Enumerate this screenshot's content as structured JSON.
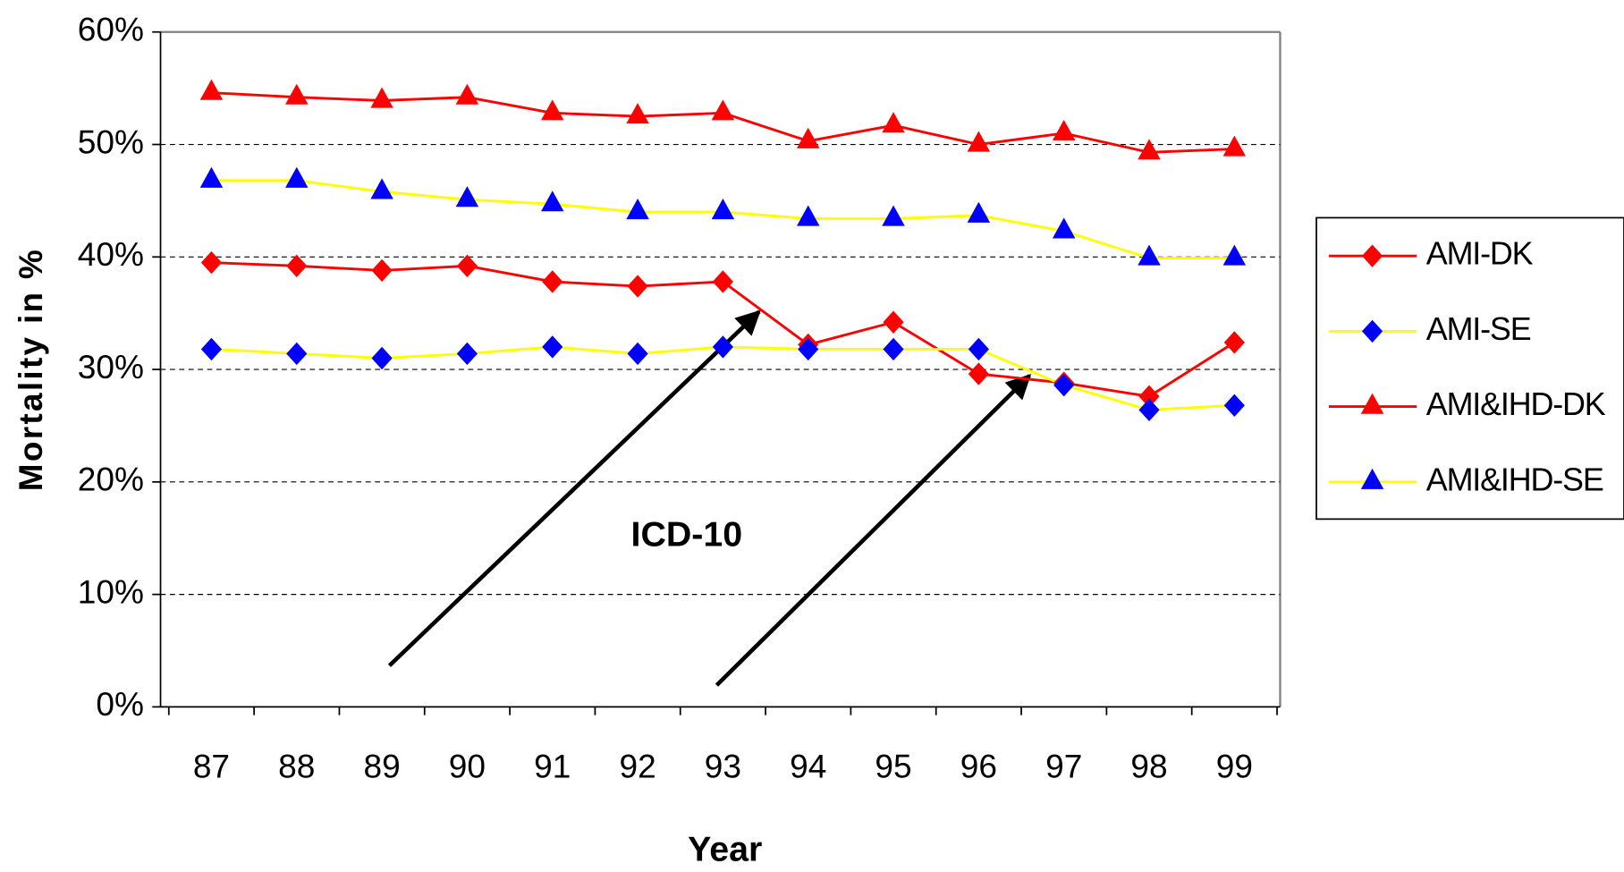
{
  "chart_data": {
    "type": "line",
    "x_label": "Year",
    "y_label": "Mortality in %",
    "categories": [
      "87",
      "88",
      "89",
      "90",
      "91",
      "92",
      "93",
      "94",
      "95",
      "96",
      "97",
      "98",
      "99"
    ],
    "series": [
      {
        "name": "AMI-DK",
        "color": "#ff0000",
        "marker_color": "#ff0000",
        "marker": "diamond",
        "values": [
          39.5,
          39.2,
          38.8,
          39.2,
          37.8,
          37.4,
          37.8,
          32.2,
          34.2,
          29.6,
          28.8,
          27.6,
          32.4
        ]
      },
      {
        "name": "AMI-SE",
        "color": "#ffff00",
        "marker_color": "#0000ff",
        "marker": "diamond",
        "values": [
          31.8,
          31.4,
          31.0,
          31.4,
          32.0,
          31.4,
          32.0,
          31.8,
          31.8,
          31.8,
          28.6,
          26.4,
          26.8
        ]
      },
      {
        "name": "AMI&IHD-DK",
        "color": "#ff0000",
        "marker_color": "#ff0000",
        "marker": "triangle",
        "values": [
          54.6,
          54.2,
          53.9,
          54.2,
          52.8,
          52.5,
          52.8,
          50.3,
          51.7,
          50.0,
          51.0,
          49.3,
          49.6
        ]
      },
      {
        "name": "AMI&IHD-SE",
        "color": "#ffff00",
        "marker_color": "#0000ff",
        "marker": "triangle",
        "values": [
          46.8,
          46.8,
          45.8,
          45.1,
          44.7,
          44.0,
          44.0,
          43.4,
          43.4,
          43.7,
          42.3,
          39.9,
          39.9
        ]
      }
    ],
    "ylim": [
      0,
      60
    ],
    "yticks": [
      {
        "value": 0,
        "label": "0%"
      },
      {
        "value": 10,
        "label": "10%"
      },
      {
        "value": 20,
        "label": "20%"
      },
      {
        "value": 30,
        "label": "30%"
      },
      {
        "value": 40,
        "label": "40%"
      },
      {
        "value": 50,
        "label": "50%"
      },
      {
        "value": 60,
        "label": "60%"
      }
    ],
    "grid": true,
    "legend": "right",
    "annotation": "ICD-10"
  }
}
